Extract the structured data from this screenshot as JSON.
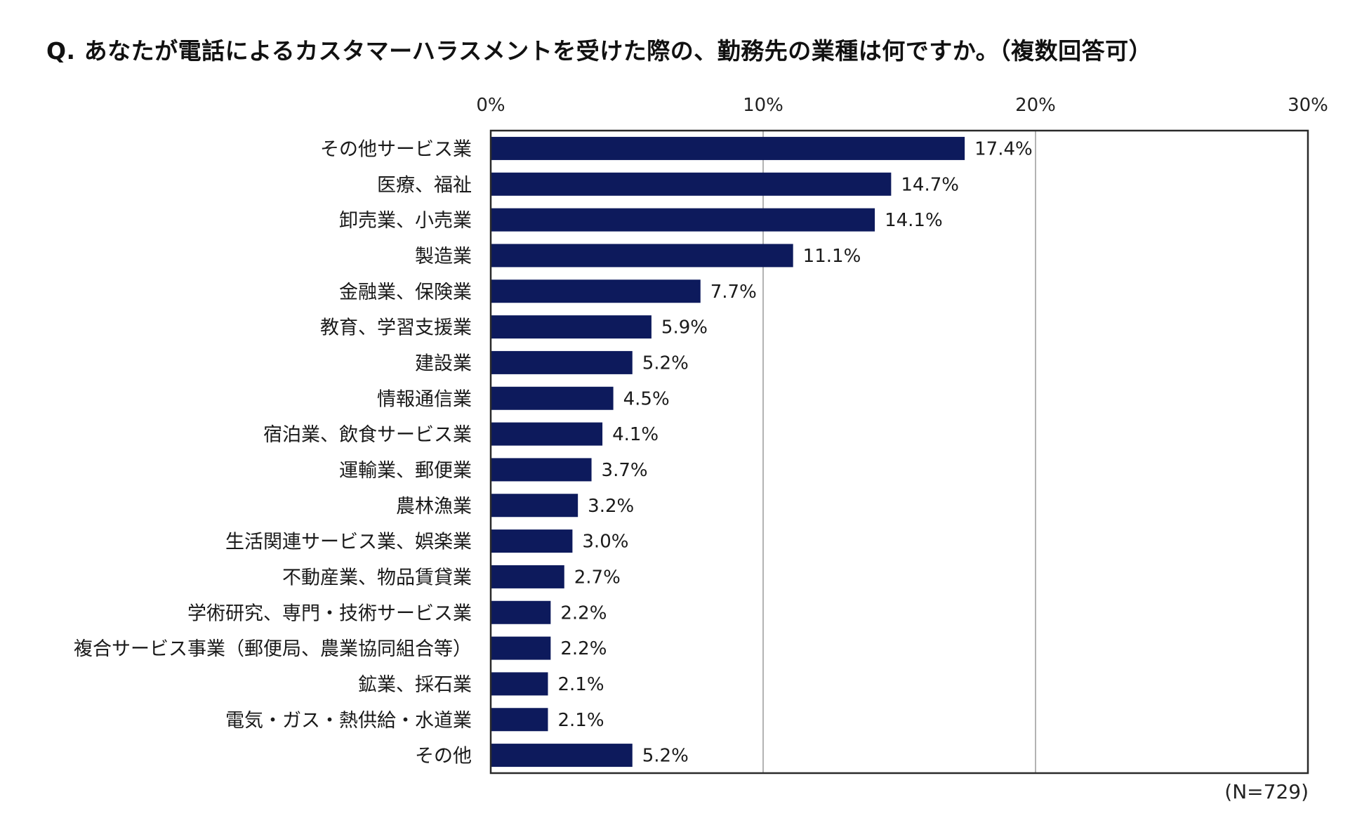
{
  "chart_data": {
    "type": "bar",
    "orientation": "horizontal",
    "title": "Q. あなたが電話によるカスタマーハラスメントを受けた際の、勤務先の業種は何ですか。（複数回答可）",
    "note": "(N=729)",
    "xlim": [
      0,
      30
    ],
    "xticks": [
      0,
      10,
      20,
      30
    ],
    "tick_suffix": "%",
    "value_suffix": "%",
    "grid": true,
    "bar_color": "#0d1a5c",
    "categories": [
      "その他サービス業",
      "医療、福祉",
      "卸売業、小売業",
      "製造業",
      "金融業、保険業",
      "教育、学習支援業",
      "建設業",
      "情報通信業",
      "宿泊業、飲食サービス業",
      "運輸業、郵便業",
      "農林漁業",
      "生活関連サービス業、娯楽業",
      "不動産業、物品賃貸業",
      "学術研究、専門・技術サービス業",
      "複合サービス事業（郵便局、農業協同組合等）",
      "鉱業、採石業",
      "電気・ガス・熱供給・水道業",
      "その他"
    ],
    "values": [
      17.4,
      14.7,
      14.1,
      11.1,
      7.7,
      5.9,
      5.2,
      4.5,
      4.1,
      3.7,
      3.2,
      3.0,
      2.7,
      2.2,
      2.2,
      2.1,
      2.1,
      5.2
    ]
  }
}
